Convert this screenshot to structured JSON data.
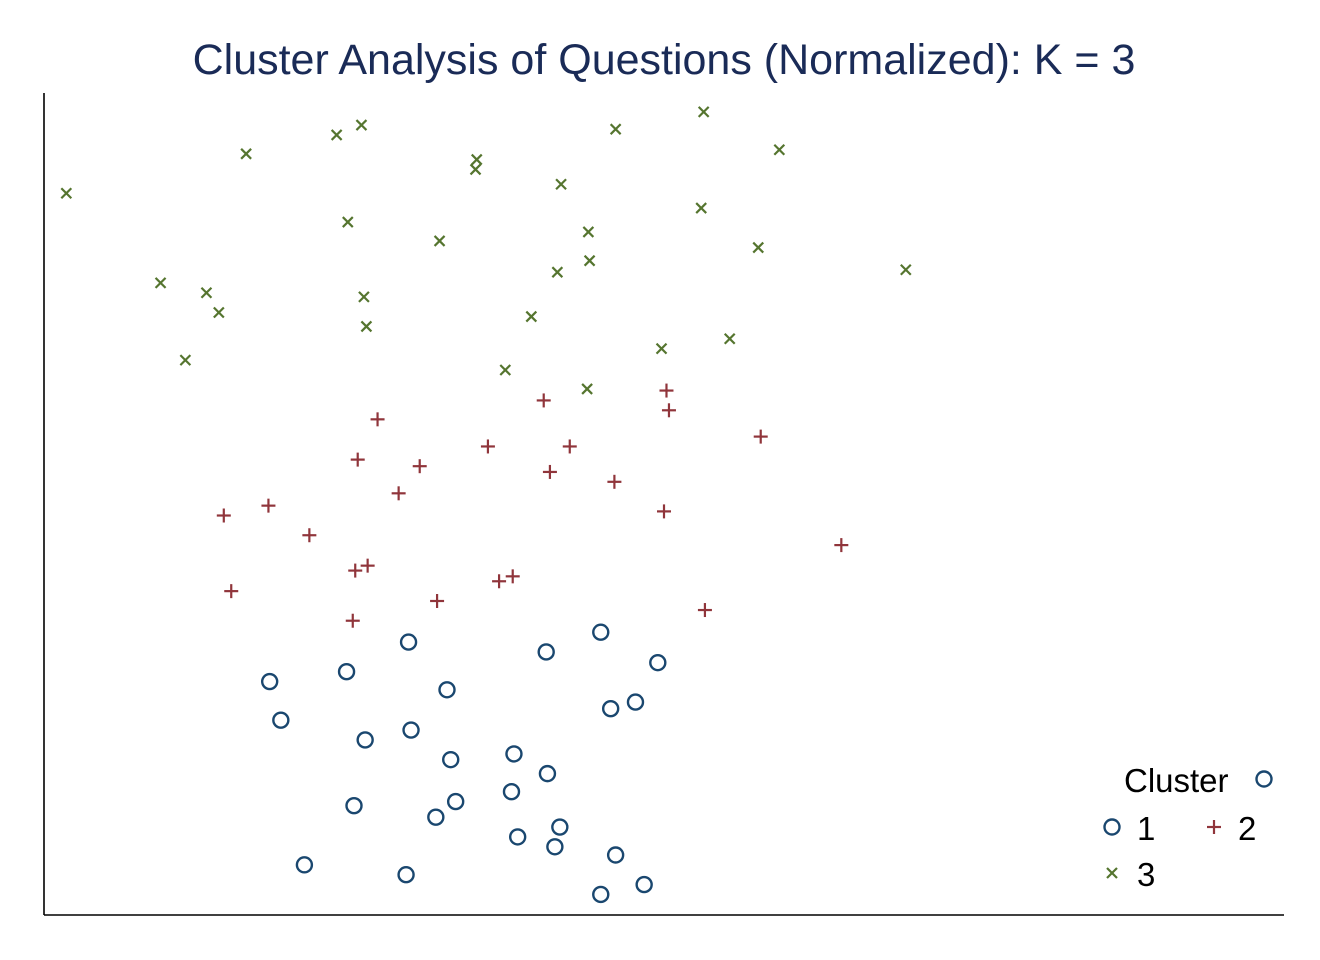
{
  "chart_data": {
    "type": "scatter",
    "title": "Cluster Analysis of Questions (Normalized): K = 3",
    "xlabel": "",
    "ylabel": "",
    "xlim": [
      0,
      100
    ],
    "ylim": [
      0,
      100
    ],
    "grid": false,
    "legend": {
      "title": "Cluster",
      "placement": "bottom-right",
      "entries": [
        "1",
        "2",
        "3"
      ]
    },
    "colors": {
      "1": "#1a476f",
      "2": "#90353b",
      "3": "#55752f"
    },
    "series": [
      {
        "name": "1",
        "marker": "circle",
        "points": [
          [
            18.2,
            28.4
          ],
          [
            19.1,
            23.7
          ],
          [
            21.0,
            6.1
          ],
          [
            24.4,
            29.6
          ],
          [
            25.0,
            13.3
          ],
          [
            25.9,
            21.3
          ],
          [
            29.4,
            33.2
          ],
          [
            29.2,
            4.9
          ],
          [
            29.6,
            22.5
          ],
          [
            31.6,
            11.9
          ],
          [
            32.5,
            27.4
          ],
          [
            32.8,
            18.9
          ],
          [
            33.2,
            13.8
          ],
          [
            37.7,
            15.0
          ],
          [
            37.9,
            19.6
          ],
          [
            38.2,
            9.5
          ],
          [
            40.5,
            32.0
          ],
          [
            40.6,
            17.2
          ],
          [
            41.2,
            8.3
          ],
          [
            41.6,
            10.7
          ],
          [
            44.9,
            34.4
          ],
          [
            45.7,
            25.1
          ],
          [
            46.1,
            7.3
          ],
          [
            47.7,
            25.9
          ],
          [
            44.9,
            2.5
          ],
          [
            48.4,
            3.7
          ],
          [
            49.5,
            30.7
          ]
        ]
      },
      {
        "name": "2",
        "marker": "plus",
        "points": [
          [
            14.5,
            48.6
          ],
          [
            15.1,
            39.4
          ],
          [
            18.1,
            49.8
          ],
          [
            21.4,
            46.2
          ],
          [
            24.9,
            35.8
          ],
          [
            25.1,
            41.9
          ],
          [
            25.3,
            55.4
          ],
          [
            26.1,
            42.5
          ],
          [
            26.9,
            60.3
          ],
          [
            28.6,
            51.3
          ],
          [
            30.3,
            54.6
          ],
          [
            31.7,
            38.2
          ],
          [
            35.8,
            57.0
          ],
          [
            36.7,
            40.6
          ],
          [
            37.8,
            41.2
          ],
          [
            40.3,
            62.6
          ],
          [
            40.8,
            53.9
          ],
          [
            42.4,
            57.0
          ],
          [
            46.0,
            52.7
          ],
          [
            50.0,
            49.1
          ],
          [
            50.2,
            63.8
          ],
          [
            50.4,
            61.4
          ],
          [
            53.3,
            37.1
          ],
          [
            57.8,
            58.2
          ],
          [
            64.3,
            45.0
          ]
        ]
      },
      {
        "name": "3",
        "marker": "x",
        "points": [
          [
            1.8,
            87.8
          ],
          [
            9.4,
            76.9
          ],
          [
            11.4,
            67.5
          ],
          [
            13.1,
            75.7
          ],
          [
            14.1,
            73.3
          ],
          [
            16.3,
            92.6
          ],
          [
            23.6,
            94.9
          ],
          [
            24.5,
            84.3
          ],
          [
            25.6,
            96.1
          ],
          [
            25.8,
            75.2
          ],
          [
            26.0,
            71.6
          ],
          [
            31.9,
            82.0
          ],
          [
            34.9,
            91.9
          ],
          [
            34.8,
            90.7
          ],
          [
            37.2,
            66.3
          ],
          [
            39.3,
            72.8
          ],
          [
            41.4,
            78.2
          ],
          [
            41.7,
            88.9
          ],
          [
            43.8,
            64.0
          ],
          [
            43.9,
            83.1
          ],
          [
            44.0,
            79.6
          ],
          [
            46.1,
            95.6
          ],
          [
            49.8,
            68.9
          ],
          [
            53.2,
            97.7
          ],
          [
            53.0,
            86.0
          ],
          [
            55.3,
            70.1
          ],
          [
            57.6,
            81.2
          ],
          [
            59.3,
            93.1
          ],
          [
            69.5,
            78.5
          ]
        ]
      }
    ]
  }
}
